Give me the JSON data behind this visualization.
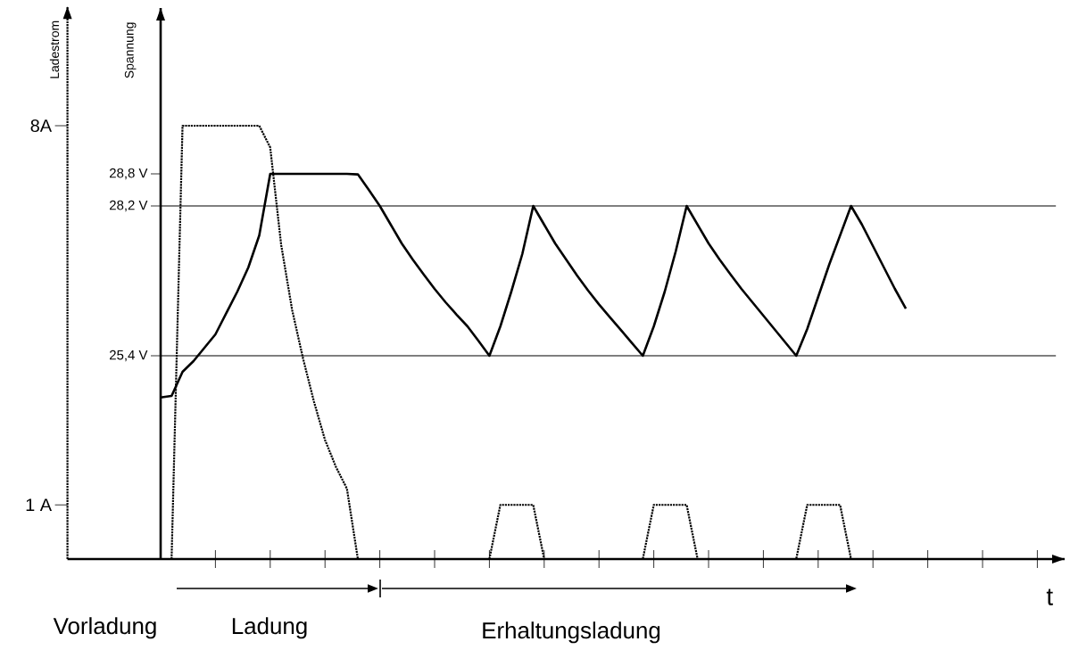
{
  "chart_data": [
    {
      "type": "line",
      "ylabel": "Spannung",
      "ylim": [
        21.6,
        31.9
      ],
      "categories": [
        null,
        null,
        null,
        null,
        null,
        null,
        null,
        null,
        null,
        null,
        null,
        null,
        null,
        null,
        null,
        null,
        null,
        null,
        null,
        null,
        null,
        null,
        null,
        null,
        null,
        null,
        null,
        null,
        null,
        null,
        null,
        null,
        null,
        null,
        null,
        null,
        null,
        null,
        null,
        null,
        null,
        null,
        null,
        null,
        null,
        null,
        null,
        null,
        null,
        null,
        null,
        null,
        null,
        null,
        null,
        null,
        null,
        null,
        null,
        null,
        null,
        null,
        null,
        null,
        null,
        null,
        null,
        null,
        null
      ],
      "yticks": [
        {
          "value": 25.4,
          "label": "25,4 V"
        },
        {
          "value": 28.2,
          "label": "28,2 V"
        },
        {
          "value": 28.8,
          "label": "28,8 V"
        }
      ],
      "ref_lines": [
        {
          "axis": "y",
          "value": 28.2
        },
        {
          "axis": "y",
          "value": 25.4
        }
      ],
      "marker": "none",
      "series": [
        {
          "color": "#000000",
          "line_style": "solid",
          "values": [
            24.62,
            24.65,
            25.1,
            25.3,
            25.55,
            25.8,
            26.2,
            26.6,
            27.05,
            27.65,
            28.8,
            28.8,
            28.8,
            28.8,
            28.8,
            28.8,
            28.8,
            28.8,
            28.79,
            28.5,
            28.2,
            27.85,
            27.5,
            27.2,
            26.92,
            26.65,
            26.4,
            26.17,
            25.95,
            25.68,
            25.4,
            25.95,
            26.6,
            27.3,
            28.2,
            27.85,
            27.5,
            27.2,
            26.9,
            26.62,
            26.36,
            26.12,
            25.88,
            25.64,
            25.4,
            25.95,
            26.6,
            27.35,
            28.2,
            27.85,
            27.5,
            27.2,
            26.92,
            26.65,
            26.4,
            26.15,
            25.9,
            25.65,
            25.4,
            25.9,
            26.5,
            27.1,
            27.65,
            28.2,
            27.85,
            27.45,
            27.05,
            26.65,
            26.28
          ]
        }
      ]
    },
    {
      "type": "line",
      "xlabel": "t",
      "ylabel": "Ladestrom",
      "ylim": [
        0,
        10.2
      ],
      "categories": [
        null,
        null,
        null,
        null,
        null,
        null,
        null,
        null,
        null,
        null,
        null,
        null,
        null,
        null,
        null,
        null,
        null,
        null,
        null,
        null,
        null,
        null,
        null,
        null,
        null,
        null,
        null,
        null,
        null,
        null,
        null,
        null,
        null,
        null,
        null,
        null,
        null,
        null,
        null,
        null,
        null,
        null,
        null,
        null,
        null,
        null,
        null,
        null,
        null,
        null,
        null,
        null,
        null,
        null,
        null,
        null,
        null,
        null,
        null,
        null,
        null,
        null,
        null,
        null,
        null,
        null,
        null,
        null,
        null,
        null,
        null,
        null,
        null,
        null,
        null,
        null,
        null,
        null,
        null,
        null,
        null,
        null,
        null,
        null,
        null,
        null,
        null,
        null,
        null,
        null,
        null
      ],
      "yticks": [
        {
          "value": 1,
          "label": "1 A"
        },
        {
          "value": 8,
          "label": "8A"
        }
      ],
      "annotations": [
        "Vorladung",
        "Ladung",
        "Erhaltungsladung"
      ],
      "marker": "none",
      "series": [
        {
          "color": "#000000",
          "line_style": "dotted",
          "values": [
            null,
            null,
            null,
            null,
            null,
            null,
            null,
            null,
            null,
            0,
            8,
            8,
            8,
            8,
            8,
            8,
            8,
            8,
            7.6,
            5.8,
            4.6,
            3.7,
            2.9,
            2.2,
            1.7,
            1.3,
            0,
            0,
            0,
            0,
            0,
            0,
            0,
            0,
            0,
            0,
            0,
            0,
            0,
            1,
            1,
            1,
            1,
            0,
            0,
            0,
            0,
            0,
            0,
            0,
            0,
            0,
            0,
            1,
            1,
            1,
            1,
            0,
            0,
            0,
            0,
            0,
            0,
            0,
            0,
            0,
            0,
            1,
            1,
            1,
            1,
            0,
            null,
            null,
            null,
            null,
            null,
            null,
            null,
            null,
            null,
            null,
            null,
            null,
            null,
            null,
            null,
            null,
            null,
            null,
            null
          ]
        }
      ]
    }
  ]
}
